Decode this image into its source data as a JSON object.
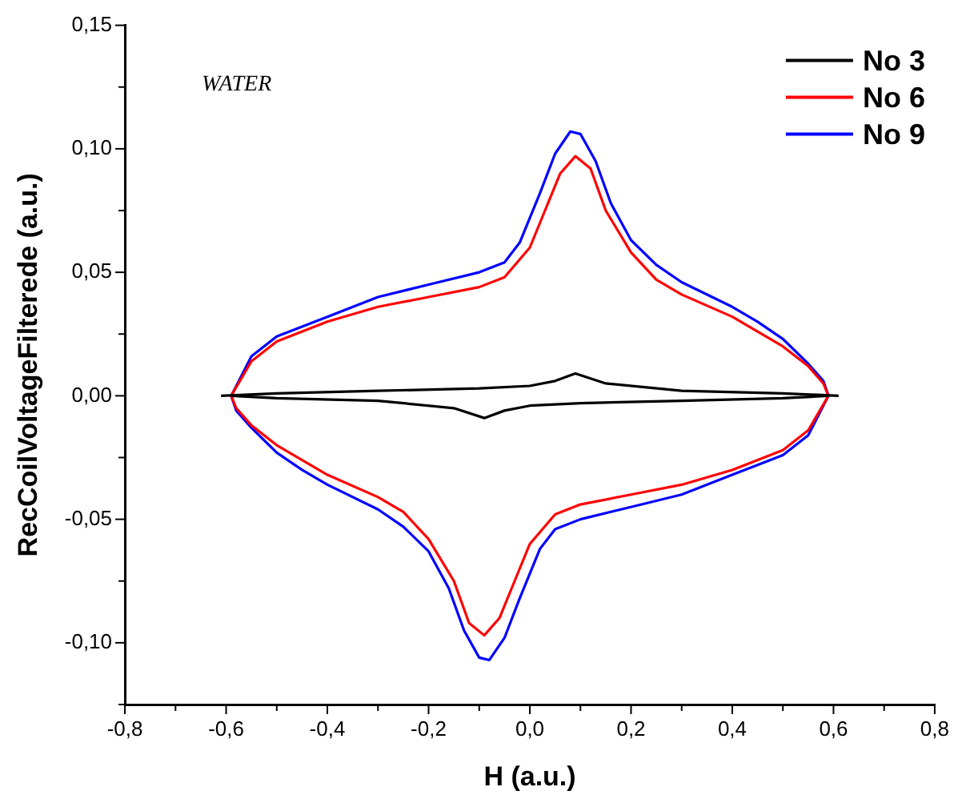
{
  "chart_data": {
    "type": "line",
    "xlabel": "H (a.u.)",
    "ylabel": "RecCoilVoltageFilterede (a.u.)",
    "annotations": [
      "WATER"
    ],
    "xlim": [
      -0.8,
      0.8
    ],
    "xticks": [
      {
        "value": -0.8,
        "label": "-0,8"
      },
      {
        "value": -0.7,
        "label": null
      },
      {
        "value": -0.6,
        "label": "-0,6"
      },
      {
        "value": -0.5,
        "label": null
      },
      {
        "value": -0.4,
        "label": "-0,4"
      },
      {
        "value": -0.3,
        "label": null
      },
      {
        "value": -0.2,
        "label": "-0,2"
      },
      {
        "value": -0.1,
        "label": null
      },
      {
        "value": 0,
        "label": "0,0"
      },
      {
        "value": 0.1,
        "label": null
      },
      {
        "value": 0.2,
        "label": "0,2"
      },
      {
        "value": 0.3,
        "label": null
      },
      {
        "value": 0.4,
        "label": "0,4"
      },
      {
        "value": 0.5,
        "label": null
      },
      {
        "value": 0.6,
        "label": "0,6"
      },
      {
        "value": 0.7,
        "label": null
      },
      {
        "value": 0.8,
        "label": "0,8"
      }
    ],
    "ylim": [
      -0.125,
      0.15
    ],
    "yticks": [
      {
        "value": -0.125,
        "label": null
      },
      {
        "value": -0.1,
        "label": "-0,10"
      },
      {
        "value": -0.075,
        "label": null
      },
      {
        "value": -0.05,
        "label": "-0,05"
      },
      {
        "value": -0.025,
        "label": null
      },
      {
        "value": 0,
        "label": "0,00"
      },
      {
        "value": 0.025,
        "label": null
      },
      {
        "value": 0.05,
        "label": "0,05"
      },
      {
        "value": 0.075,
        "label": null
      },
      {
        "value": 0.1,
        "label": "0,10"
      },
      {
        "value": 0.125,
        "label": null
      },
      {
        "value": 0.15,
        "label": "0,15"
      }
    ],
    "grid": false,
    "legend": "top right",
    "marker": "none",
    "line_style": "solid",
    "series": [
      {
        "name": "No 3",
        "color": "#000000",
        "x": [
          -0.61,
          -0.5,
          -0.3,
          -0.1,
          0,
          0.05,
          0.09,
          0.15,
          0.3,
          0.5,
          0.61
        ],
        "values": [
          0,
          0.001,
          0.002,
          0.003,
          0.004,
          0.006,
          0.009,
          0.005,
          0.002,
          0.001,
          0
        ]
      },
      {
        "color": "#000000",
        "x": [
          -0.59,
          -0.5,
          -0.3,
          -0.15,
          -0.09,
          -0.05,
          0,
          0.1,
          0.3,
          0.5,
          0.59
        ],
        "values": [
          0,
          -0.001,
          -0.002,
          -0.005,
          -0.009,
          -0.006,
          -0.004,
          -0.003,
          -0.002,
          -0.001,
          0
        ]
      },
      {
        "name": "No 6",
        "color": "#ff0000",
        "x": [
          -0.59,
          -0.55,
          -0.5,
          -0.4,
          -0.3,
          -0.2,
          -0.1,
          -0.05,
          0,
          0.03,
          0.06,
          0.09,
          0.12,
          0.15,
          0.2,
          0.25,
          0.3,
          0.4,
          0.45,
          0.5,
          0.55,
          0.58,
          0.59
        ],
        "values": [
          0,
          0.014,
          0.022,
          0.03,
          0.036,
          0.04,
          0.044,
          0.048,
          0.06,
          0.075,
          0.09,
          0.097,
          0.092,
          0.075,
          0.058,
          0.047,
          0.041,
          0.032,
          0.026,
          0.02,
          0.012,
          0.005,
          0
        ]
      },
      {
        "color": "#ff0000",
        "x": [
          -0.59,
          -0.58,
          -0.55,
          -0.5,
          -0.45,
          -0.4,
          -0.3,
          -0.25,
          -0.2,
          -0.15,
          -0.12,
          -0.09,
          -0.06,
          -0.03,
          0,
          0.05,
          0.1,
          0.2,
          0.3,
          0.4,
          0.5,
          0.55,
          0.59
        ],
        "values": [
          0,
          -0.005,
          -0.012,
          -0.02,
          -0.026,
          -0.032,
          -0.041,
          -0.047,
          -0.058,
          -0.075,
          -0.092,
          -0.097,
          -0.09,
          -0.075,
          -0.06,
          -0.048,
          -0.044,
          -0.04,
          -0.036,
          -0.03,
          -0.022,
          -0.014,
          0
        ]
      },
      {
        "name": "No 9",
        "color": "#0000ff",
        "x": [
          -0.59,
          -0.55,
          -0.5,
          -0.4,
          -0.3,
          -0.2,
          -0.1,
          -0.05,
          -0.02,
          0.02,
          0.05,
          0.08,
          0.1,
          0.13,
          0.16,
          0.2,
          0.25,
          0.3,
          0.4,
          0.45,
          0.5,
          0.55,
          0.58,
          0.59
        ],
        "values": [
          0,
          0.016,
          0.024,
          0.032,
          0.04,
          0.045,
          0.05,
          0.054,
          0.062,
          0.082,
          0.098,
          0.107,
          0.106,
          0.095,
          0.078,
          0.063,
          0.053,
          0.046,
          0.036,
          0.03,
          0.023,
          0.013,
          0.006,
          0
        ]
      },
      {
        "color": "#0000ff",
        "x": [
          -0.59,
          -0.58,
          -0.55,
          -0.5,
          -0.45,
          -0.4,
          -0.3,
          -0.25,
          -0.2,
          -0.16,
          -0.13,
          -0.1,
          -0.08,
          -0.05,
          -0.02,
          0.02,
          0.05,
          0.1,
          0.2,
          0.3,
          0.4,
          0.5,
          0.55,
          0.59
        ],
        "values": [
          0,
          -0.006,
          -0.013,
          -0.023,
          -0.03,
          -0.036,
          -0.046,
          -0.053,
          -0.063,
          -0.078,
          -0.095,
          -0.106,
          -0.107,
          -0.098,
          -0.082,
          -0.062,
          -0.054,
          -0.05,
          -0.045,
          -0.04,
          -0.032,
          -0.024,
          -0.016,
          0
        ]
      }
    ]
  }
}
